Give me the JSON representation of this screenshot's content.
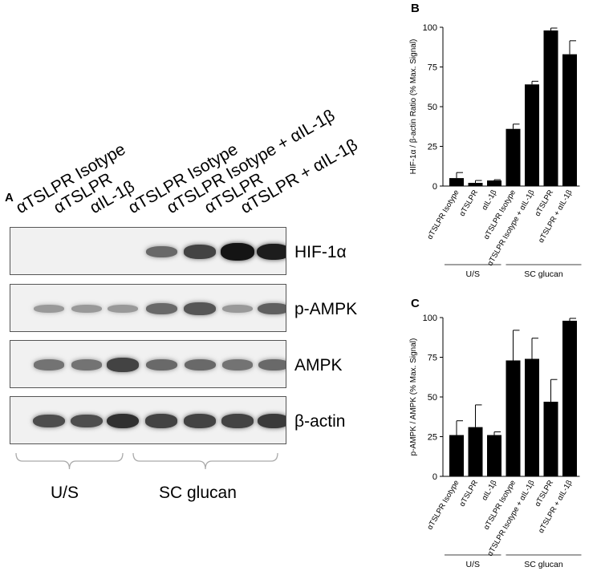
{
  "panel_a": {
    "letter": "A",
    "lanes": [
      "αTSLPR Isotype",
      "αTSLPR",
      "αIL-1β",
      "αTSLPR Isotype",
      "αTSLPR Isotype + αIL-1β",
      "αTSLPR",
      "αTSLPR + αIL-1β"
    ],
    "blots": [
      {
        "label": "HIF-1α",
        "intensity": [
          0,
          0,
          0,
          0.5,
          0.7,
          0.95,
          0.9
        ]
      },
      {
        "label": "p-AMPK",
        "intensity": [
          0.25,
          0.25,
          0.25,
          0.5,
          0.6,
          0.25,
          0.55
        ]
      },
      {
        "label": "AMPK",
        "intensity": [
          0.45,
          0.45,
          0.7,
          0.5,
          0.5,
          0.45,
          0.5
        ]
      },
      {
        "label": "β-actin",
        "intensity": [
          0.65,
          0.65,
          0.8,
          0.7,
          0.7,
          0.7,
          0.75
        ]
      }
    ],
    "groups": {
      "us": "U/S",
      "sc": "SC glucan"
    }
  },
  "chart_data": [
    {
      "panel": "B",
      "type": "bar",
      "ylabel": "HIF-1α / β-actin Ratio (% Max. Signal)",
      "ylim": [
        0,
        100
      ],
      "yticks": [
        "0",
        "25",
        "50",
        "75",
        "100"
      ],
      "categories": [
        "αTSLPR Isotype",
        "αTSLPR",
        "αIL-1β",
        "αTSLPR Isotype",
        "αTSLPR Isotype + αIL-1β",
        "αTSLPR",
        "αTSLPR + αIL-1β"
      ],
      "values": [
        5,
        2,
        3.5,
        36,
        64,
        98,
        83
      ],
      "errors": [
        3.5,
        1.5,
        0.5,
        3,
        2,
        1.5,
        8.5
      ],
      "groups": [
        "U/S",
        "SC glucan"
      ],
      "bar_color": "#000000",
      "grid": false
    },
    {
      "panel": "C",
      "type": "bar",
      "ylabel": "p-AMPK / AMPK (% Max. Signal)",
      "ylim": [
        0,
        100
      ],
      "yticks": [
        "0",
        "25",
        "50",
        "75",
        "100"
      ],
      "categories": [
        "αTSLPR Isotype",
        "αTSLPR",
        "αIL-1β",
        "αTSLPR Isotype",
        "αTSLPR Isotype + αIL-1β",
        "αTSLPR",
        "αTSLPR + αIL-1β"
      ],
      "values": [
        26,
        31,
        26,
        73,
        74,
        47,
        98
      ],
      "errors": [
        9,
        14,
        2,
        19,
        13,
        14,
        1.5
      ],
      "groups": [
        "U/S",
        "SC glucan"
      ],
      "bar_color": "#000000",
      "grid": false
    }
  ]
}
